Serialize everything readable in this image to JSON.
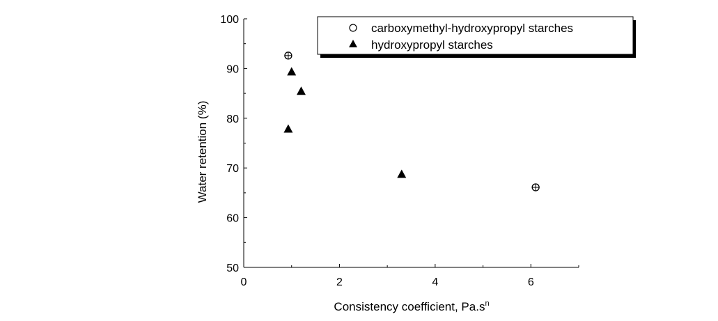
{
  "chart_data": {
    "type": "scatter",
    "xlabel": "Consistency coefficient, Pa.s",
    "xlabel_superscript": "n",
    "ylabel": "Water retention (%)",
    "xlim": [
      0,
      7
    ],
    "ylim": [
      50,
      100
    ],
    "x_ticks": [
      "0",
      "2",
      "4",
      "6"
    ],
    "y_ticks": [
      "50",
      "60",
      "70",
      "80",
      "90",
      "100"
    ],
    "legend_position": "top-right",
    "series": [
      {
        "name": "carboxymethyl-hydroxypropyl starches",
        "marker": "open-circle-crosshair",
        "color": "#000000",
        "points": [
          {
            "x": 0.93,
            "y": 92.6
          },
          {
            "x": 6.1,
            "y": 66.1
          }
        ]
      },
      {
        "name": "hydroxypropyl starches",
        "marker": "filled-triangle",
        "color": "#000000",
        "points": [
          {
            "x": 0.93,
            "y": 77.8
          },
          {
            "x": 1.0,
            "y": 89.3
          },
          {
            "x": 1.2,
            "y": 85.4
          },
          {
            "x": 3.3,
            "y": 68.7
          }
        ]
      }
    ]
  }
}
